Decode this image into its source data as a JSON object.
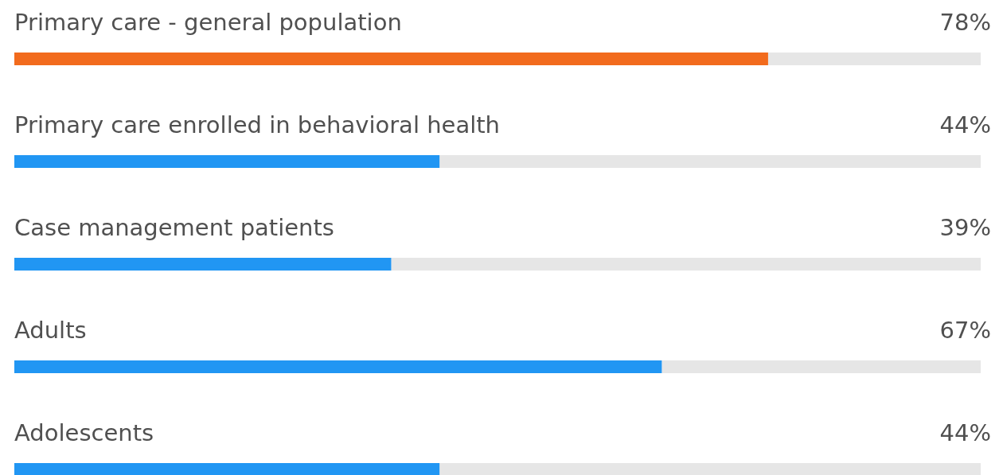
{
  "chart_data": {
    "type": "bar",
    "orientation": "horizontal",
    "categories": [
      "Primary care - general population",
      "Primary care enrolled in behavioral health",
      "Case management patients",
      "Adults",
      "Adolescents"
    ],
    "values": [
      78,
      44,
      39,
      67,
      44
    ],
    "colors": [
      "#f26b1d",
      "#2196f3",
      "#2196f3",
      "#2196f3",
      "#2196f3"
    ],
    "value_labels": [
      "78%",
      "44%",
      "39%",
      "67%",
      "44%"
    ],
    "xlim": [
      0,
      100
    ]
  }
}
